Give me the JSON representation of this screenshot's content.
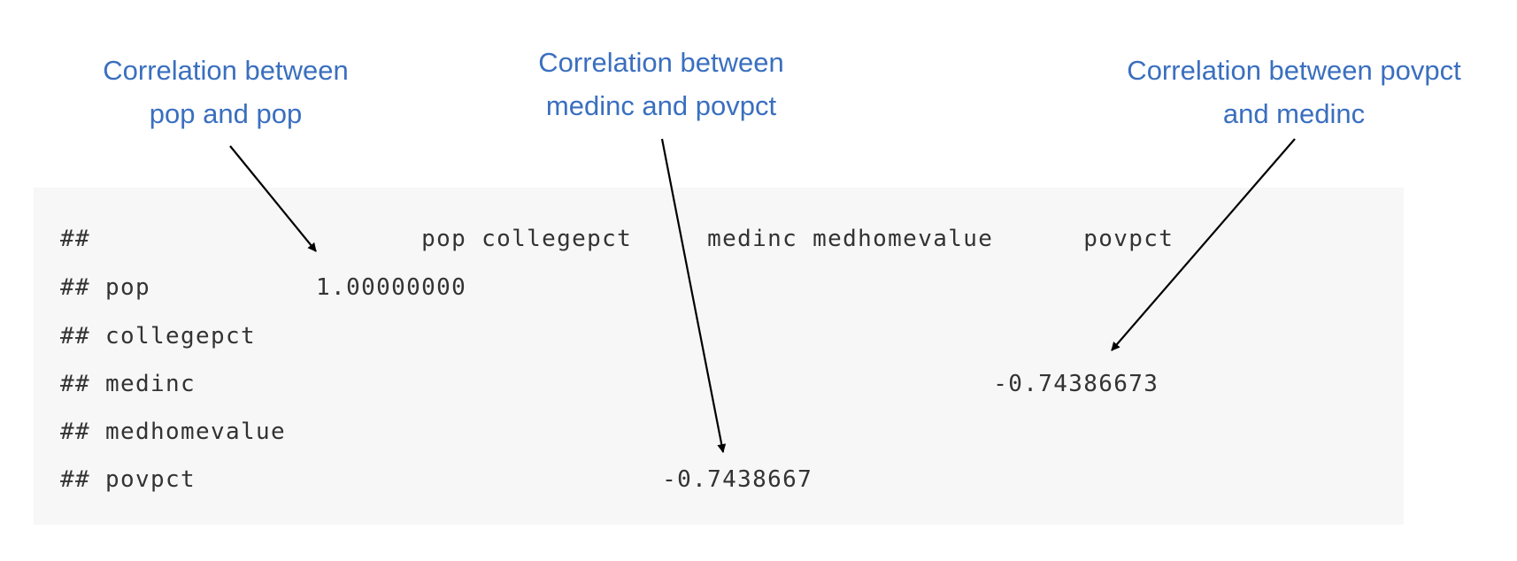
{
  "annotations": [
    {
      "lines": [
        "Correlation between",
        "pop and pop"
      ]
    },
    {
      "lines": [
        "Correlation between",
        "medinc and povpct"
      ]
    },
    {
      "lines": [
        "Correlation between povpct",
        "and medinc"
      ]
    }
  ],
  "console": {
    "lines": [
      "##                      pop collegepct     medinc medhomevalue      povpct",
      "## pop           1.00000000",
      "## collegepct",
      "## medinc                                                     -0.74386673",
      "## medhomevalue",
      "## povpct                               -0.7438667"
    ]
  },
  "colors": {
    "annotation": "#3a6fbf",
    "code_background": "#f7f7f7",
    "code_text": "#333333",
    "arrow": "#000000"
  }
}
